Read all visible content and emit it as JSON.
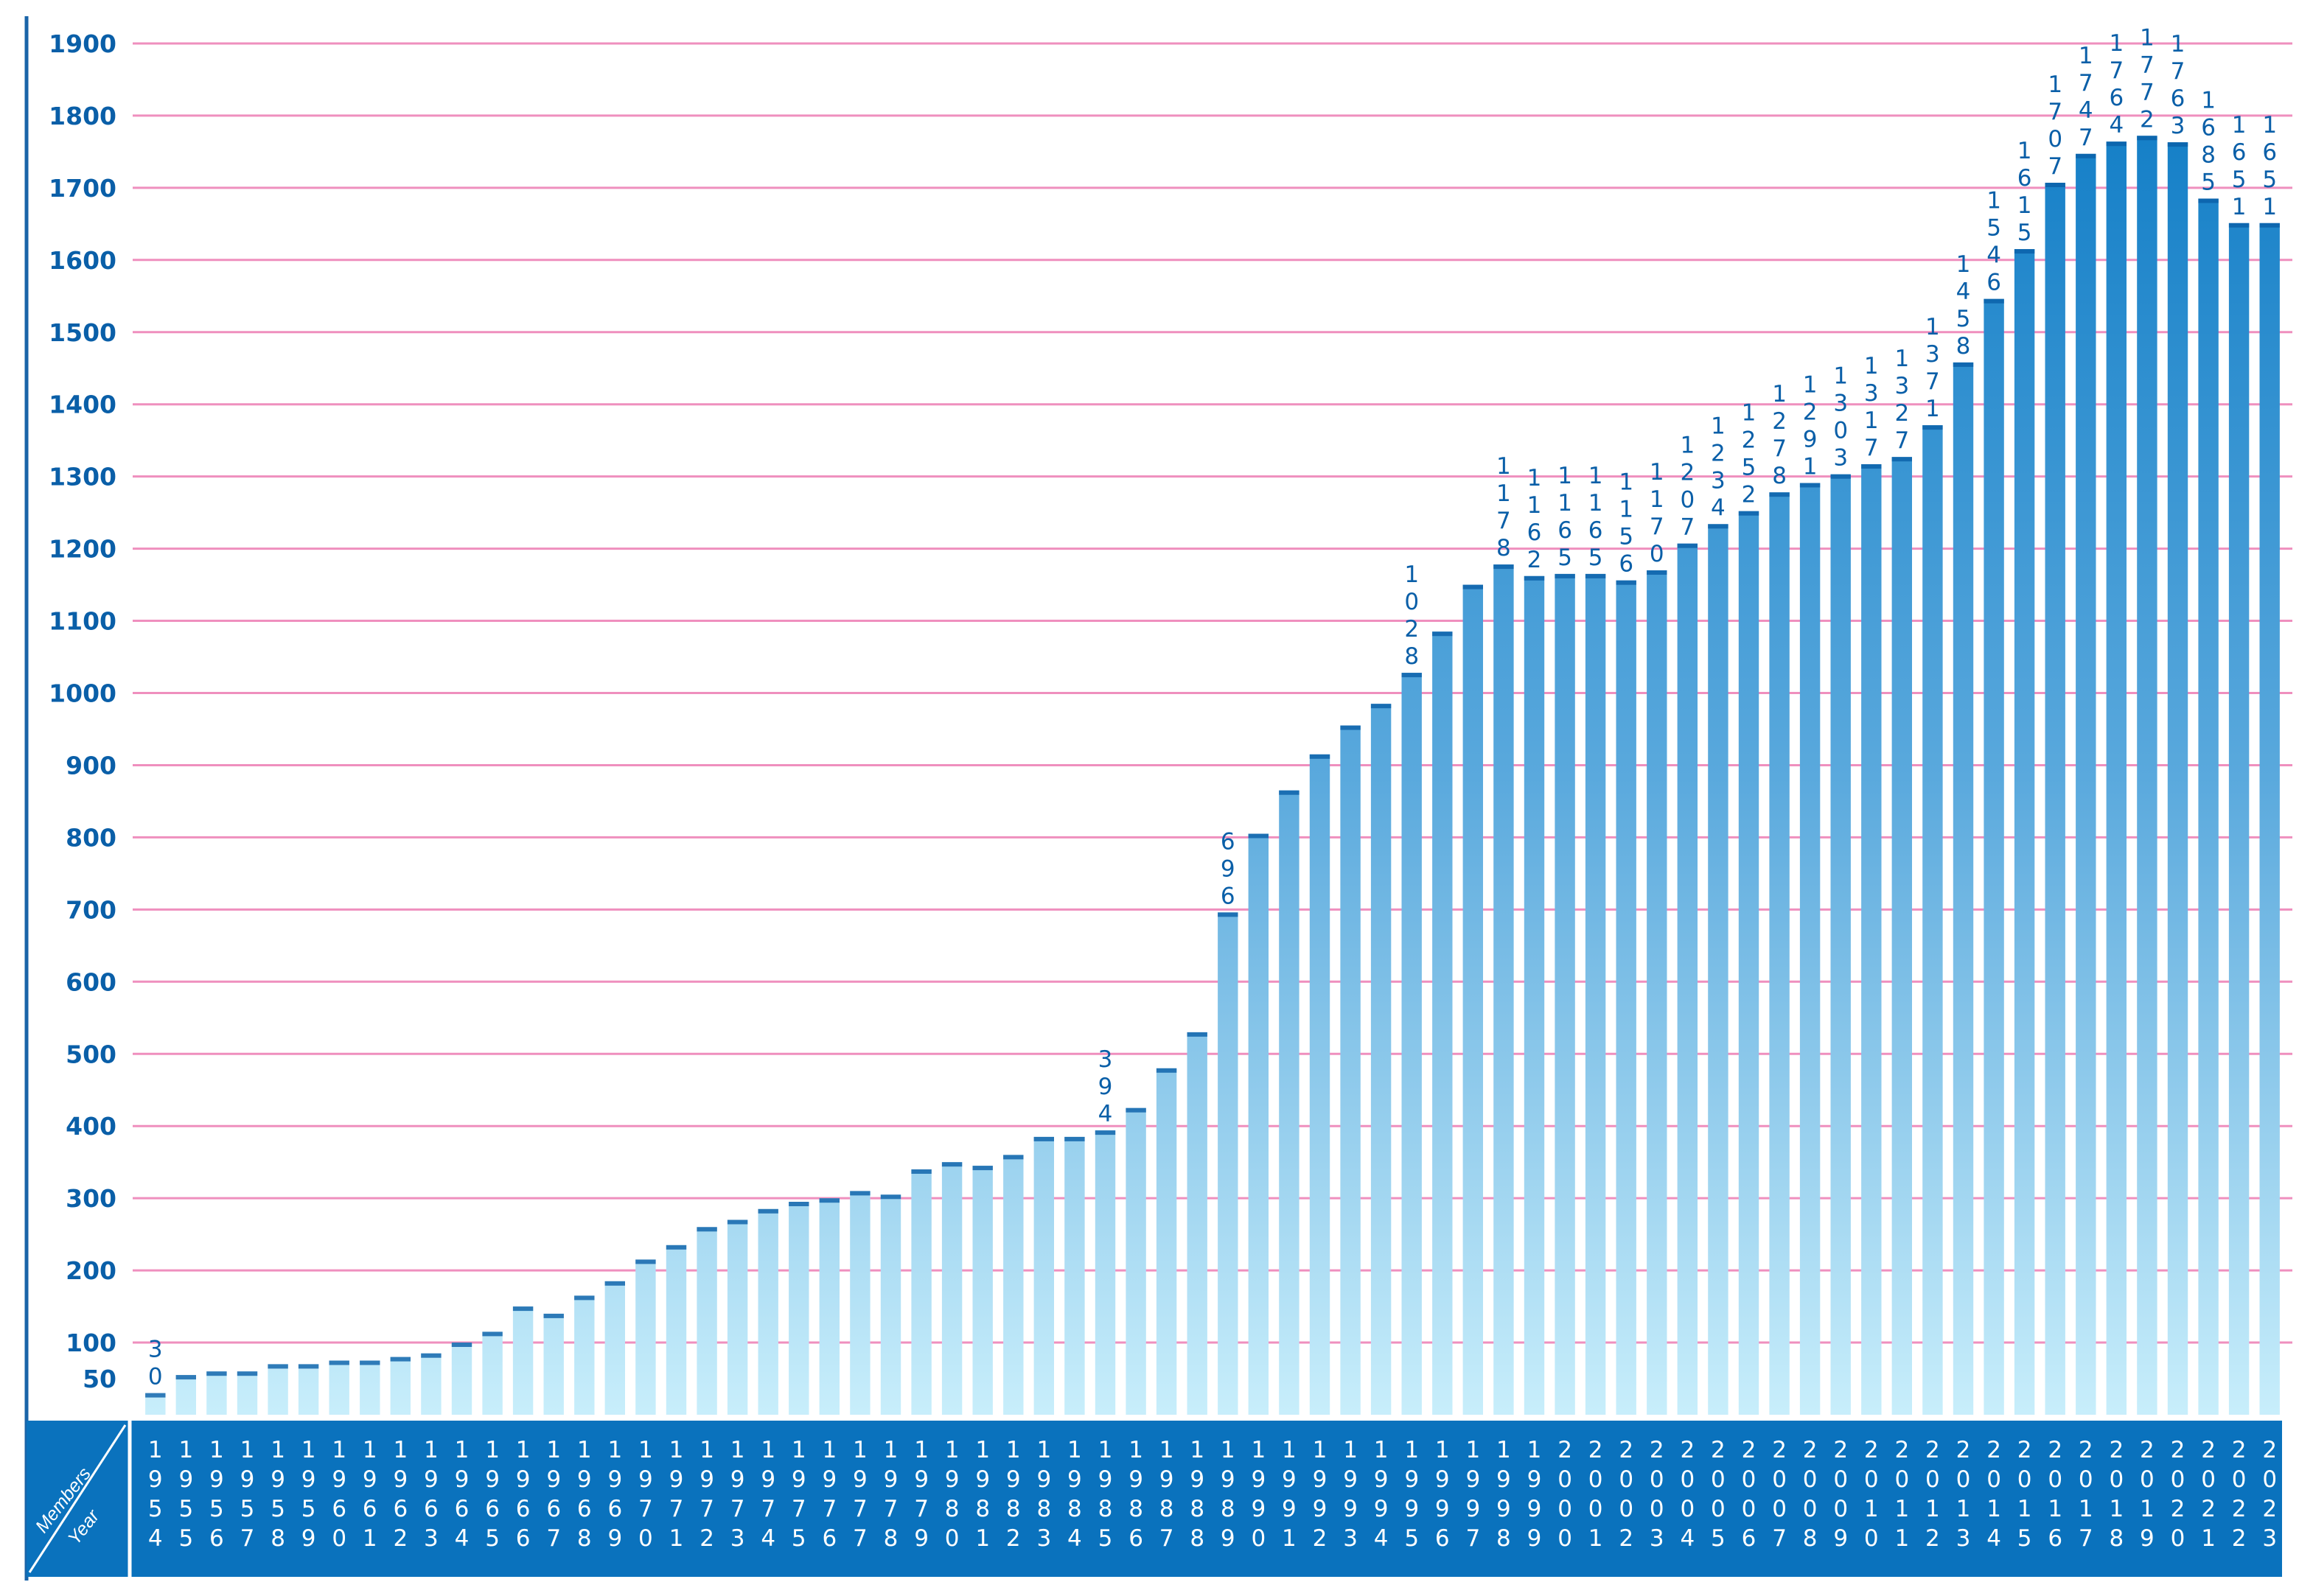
{
  "chart_data": {
    "type": "bar",
    "xlabel": "Year",
    "ylabel": "Members",
    "categories": [
      "1954",
      "1955",
      "1956",
      "1957",
      "1958",
      "1959",
      "1960",
      "1961",
      "1962",
      "1963",
      "1964",
      "1965",
      "1966",
      "1967",
      "1968",
      "1969",
      "1970",
      "1971",
      "1972",
      "1973",
      "1974",
      "1975",
      "1976",
      "1977",
      "1978",
      "1979",
      "1980",
      "1981",
      "1982",
      "1983",
      "1984",
      "1985",
      "1986",
      "1987",
      "1988",
      "1989",
      "1990",
      "1991",
      "1992",
      "1993",
      "1994",
      "1995",
      "1996",
      "1997",
      "1998",
      "1999",
      "2000",
      "2001",
      "2002",
      "2003",
      "2004",
      "2005",
      "2006",
      "2007",
      "2008",
      "2009",
      "2010",
      "2011",
      "2012",
      "2013",
      "2014",
      "2015",
      "2016",
      "2017",
      "2018",
      "2019",
      "2020",
      "2021",
      "2022",
      "2023"
    ],
    "values": [
      30,
      55,
      60,
      60,
      70,
      70,
      75,
      75,
      80,
      85,
      100,
      115,
      150,
      140,
      165,
      185,
      215,
      235,
      260,
      270,
      285,
      295,
      300,
      310,
      305,
      340,
      350,
      345,
      360,
      385,
      385,
      394,
      425,
      480,
      530,
      696,
      805,
      865,
      915,
      955,
      985,
      1028,
      1085,
      1150,
      1178,
      1162,
      1165,
      1165,
      1156,
      1170,
      1207,
      1234,
      1252,
      1278,
      1291,
      1303,
      1317,
      1327,
      1371,
      1458,
      1546,
      1615,
      1707,
      1747,
      1764,
      1772,
      1763,
      1685,
      1651,
      1651
    ],
    "labeled_values": {
      "1954": "30",
      "1985": "394",
      "1989": "696",
      "1995": "1028",
      "1998": "1178",
      "1999": "1162",
      "2000": "1165",
      "2001": "1165",
      "2002": "1156",
      "2003": "1170",
      "2004": "1207",
      "2005": "1234",
      "2006": "1252",
      "2007": "1278",
      "2008": "1291",
      "2009": "1303",
      "2010": "1317",
      "2011": "1327",
      "2012": "1371",
      "2013": "1458",
      "2014": "1546",
      "2015": "1615",
      "2016": "1707",
      "2017": "1747",
      "2018": "1764",
      "2019": "1772",
      "2020": "1763",
      "2021": "1685",
      "2022": "1651",
      "2023": "1651"
    },
    "yticks": [
      50,
      100,
      200,
      300,
      400,
      500,
      600,
      700,
      800,
      900,
      1000,
      1100,
      1200,
      1300,
      1400,
      1500,
      1600,
      1700,
      1800,
      1900
    ],
    "ylim": [
      0,
      1950
    ],
    "grid": true,
    "colors": {
      "bar_top": "#0a79c4",
      "bar_bottom": "#c4ecfb",
      "grid": "#ef8fbe",
      "axis": "#1a64a8",
      "band": "#0a72bd"
    }
  }
}
